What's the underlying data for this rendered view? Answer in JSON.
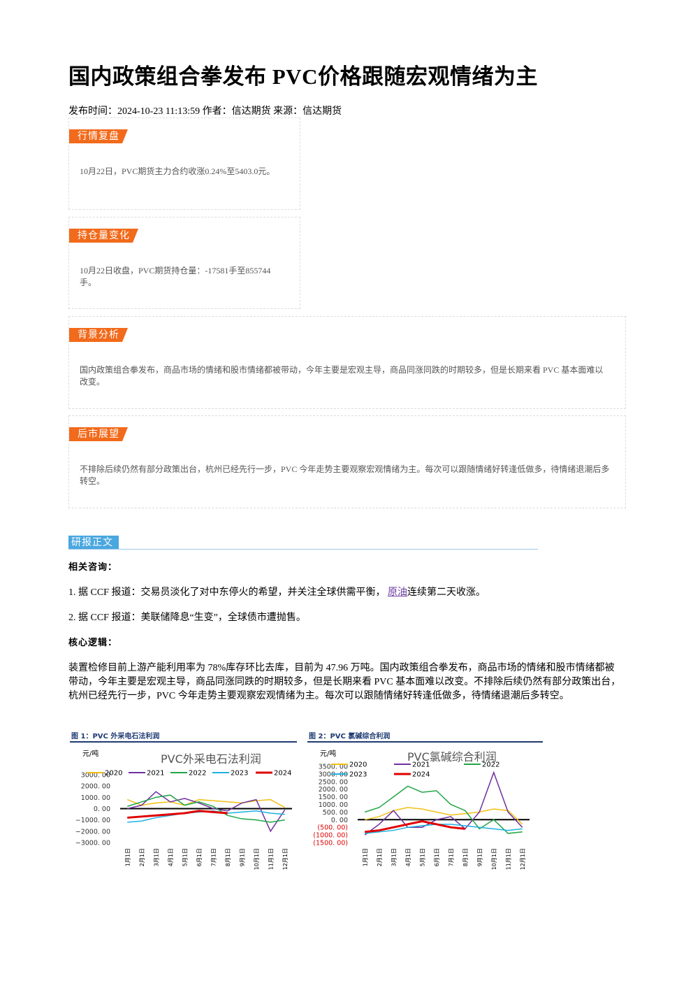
{
  "header": {
    "title": "国内政策组合拳发布 PVC价格跟随宏观情绪为主",
    "meta": "发布时间：2024-10-23 11:13:59 作者：信达期货 来源：信达期货"
  },
  "sections": [
    {
      "tag": "行情复盘",
      "text": "10月22日，PVC期货主力合约收涨0.24%至5403.0元。"
    },
    {
      "tag": "持仓量变化",
      "text": "10月22日收盘，PVC期货持仓量：-17581手至855744手。"
    },
    {
      "tag": "背景分析",
      "text": "国内政策组合拳发布，商品市场的情绪和股市情绪都被带动，今年主要是宏观主导，商品同涨同跌的时期较多，但是长期来看 PVC 基本面难以改变。"
    },
    {
      "tag": "后市展望",
      "text": "不排除后续仍然有部分政策出台，杭州已经先行一步，PVC 今年走势主要观察宏观情绪为主。每次可以跟随情绪好转逢低做多，待情绪退潮后多转空。"
    }
  ],
  "body": {
    "tag": "研报正文",
    "heading1": "相关咨询：",
    "item1": {
      "pre": "1. 据 CCF 报道：交易员淡化了对中东停火的希望，并关注全球供需平衡，",
      "link": "原油",
      "post": "连续第二天收涨。"
    },
    "item2": "2. 据 CCF 报道：美联储降息“生变”，全球债市遭抛售。",
    "heading2": "核心逻辑：",
    "paragraph": "装置检修目前上游产能利用率为 78%库存环比去库，目前为 47.96 万吨。国内政策组合拳发布，商品市场的情绪和股市情绪都被带动，今年主要是宏观主导，商品同涨同跌的时期较多，但是长期来看 PVC 基本面难以改变。不排除后续仍然有部分政策出台，杭州已经先行一步，PVC 今年走势主要观察宏观情绪为主。每次可以跟随情绪好转逢低做多，待情绪退潮后多转空。"
  },
  "chart_data": [
    {
      "type": "line",
      "caption": "图 1：PVC 外采电石法利润",
      "title": "PVC外采电石法利润",
      "unit": "元/吨",
      "categories": [
        "1月1日",
        "2月1日",
        "3月1日",
        "4月1日",
        "5月1日",
        "6月1日",
        "7月1日",
        "8月1日",
        "9月1日",
        "10月1日",
        "11月1日",
        "12月1日"
      ],
      "series": [
        {
          "name": "2020",
          "color": "#f2c014",
          "values": [
            800,
            300,
            500,
            600,
            300,
            800,
            700,
            600,
            500,
            700,
            800,
            100
          ]
        },
        {
          "name": "2021",
          "color": "#7030a0",
          "values": [
            0,
            300,
            1500,
            600,
            900,
            500,
            0,
            -200,
            500,
            800,
            -2000,
            -100
          ]
        },
        {
          "name": "2022",
          "color": "#21a645",
          "values": [
            200,
            600,
            1000,
            1200,
            300,
            600,
            200,
            -600,
            -900,
            -1000,
            -1200,
            -1000
          ]
        },
        {
          "name": "2023",
          "color": "#1fb0e0",
          "values": [
            -1200,
            -1100,
            -800,
            -600,
            -400,
            -300,
            -200,
            -400,
            -300,
            -200,
            -400,
            -500
          ]
        },
        {
          "name": "2024",
          "color": "#e00000",
          "values": [
            -800,
            -700,
            -600,
            -500,
            -400,
            -200,
            -300,
            -400,
            null,
            null,
            null,
            null
          ]
        }
      ],
      "ylim": [
        -3000,
        3000
      ],
      "yticks": [
        {
          "value": -3000,
          "label": "−3000. 00"
        },
        {
          "value": -2000,
          "label": "−2000. 00"
        },
        {
          "value": -1000,
          "label": "−1000. 00"
        },
        {
          "value": 0,
          "label": "0. 00"
        },
        {
          "value": 1000,
          "label": "1000. 00"
        },
        {
          "value": 2000,
          "label": "2000. 00"
        },
        {
          "value": 3000,
          "label": "3000. 00"
        }
      ]
    },
    {
      "type": "line",
      "caption": "图 2：PVC 氯碱综合利润",
      "title": "PVC氯碱综合利润",
      "unit": "元/吨",
      "categories": [
        "1月1日",
        "2月1日",
        "3月1日",
        "4月1日",
        "5月1日",
        "6月1日",
        "7月1日",
        "8月1日",
        "9月1日",
        "10月1日",
        "11月1日",
        "12月1日"
      ],
      "series": [
        {
          "name": "2020",
          "color": "#f2c014",
          "values": [
            0,
            200,
            600,
            800,
            700,
            500,
            300,
            400,
            500,
            700,
            600,
            -300
          ]
        },
        {
          "name": "2021",
          "color": "#7030a0",
          "values": [
            -1000,
            -300,
            600,
            -500,
            -500,
            0,
            200,
            -600,
            500,
            3100,
            500,
            -500
          ]
        },
        {
          "name": "2022",
          "color": "#21a645",
          "values": [
            500,
            800,
            1500,
            2200,
            1800,
            1900,
            1000,
            600,
            -600,
            0,
            -900,
            -800
          ]
        },
        {
          "name": "2023",
          "color": "#1fb0e0",
          "values": [
            -900,
            -800,
            -700,
            -500,
            -400,
            -300,
            -300,
            -400,
            -500,
            -600,
            -700,
            -600
          ]
        },
        {
          "name": "2024",
          "color": "#e00000",
          "values": [
            -800,
            -700,
            -500,
            -300,
            -100,
            -300,
            -500,
            -600,
            null,
            null,
            null,
            null
          ]
        }
      ],
      "ylim": [
        -1500,
        3500
      ],
      "negative_tick_color": "#e00000",
      "yticks": [
        {
          "value": -1500,
          "label": "(1500. 00)"
        },
        {
          "value": -1000,
          "label": "(1000. 00)"
        },
        {
          "value": -500,
          "label": "(500. 00)"
        },
        {
          "value": 0,
          "label": "0. 00"
        },
        {
          "value": 500,
          "label": "500. 00"
        },
        {
          "value": 1000,
          "label": "1000. 00"
        },
        {
          "value": 1500,
          "label": "1500. 00"
        },
        {
          "value": 2000,
          "label": "2000. 00"
        },
        {
          "value": 2500,
          "label": "2500. 00"
        },
        {
          "value": 3000,
          "label": "3000. 00"
        },
        {
          "value": 3500,
          "label": "3500. 00"
        }
      ]
    }
  ]
}
